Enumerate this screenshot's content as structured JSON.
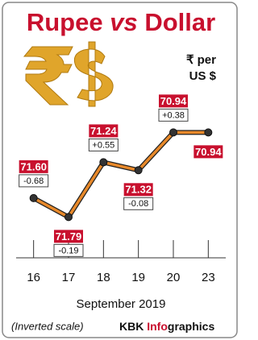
{
  "chart_data": {
    "type": "line",
    "title": [
      "Rupee",
      "vs",
      "Dollar"
    ],
    "unit": [
      "₹ per",
      "US $"
    ],
    "categories": [
      "16",
      "17",
      "18",
      "19",
      "20",
      "23"
    ],
    "values": [
      71.6,
      71.79,
      71.24,
      71.32,
      70.94,
      70.94
    ],
    "value_labels": [
      "71.60",
      "71.79",
      "71.24",
      "71.32",
      "70.94",
      "70.94"
    ],
    "changes": [
      -0.68,
      -0.19,
      0.55,
      -0.08,
      0.38,
      null
    ],
    "change_labels": [
      "-0.68",
      "-0.19",
      "+0.55",
      "-0.08",
      "+0.38",
      null
    ],
    "ylim": [
      72.2,
      70.5
    ],
    "color": "#e8892a",
    "label_color": "#c8102e",
    "xlabel": "September 2019",
    "note": "(Inverted scale)",
    "source": [
      "KBK ",
      "Info",
      "graphics"
    ]
  }
}
